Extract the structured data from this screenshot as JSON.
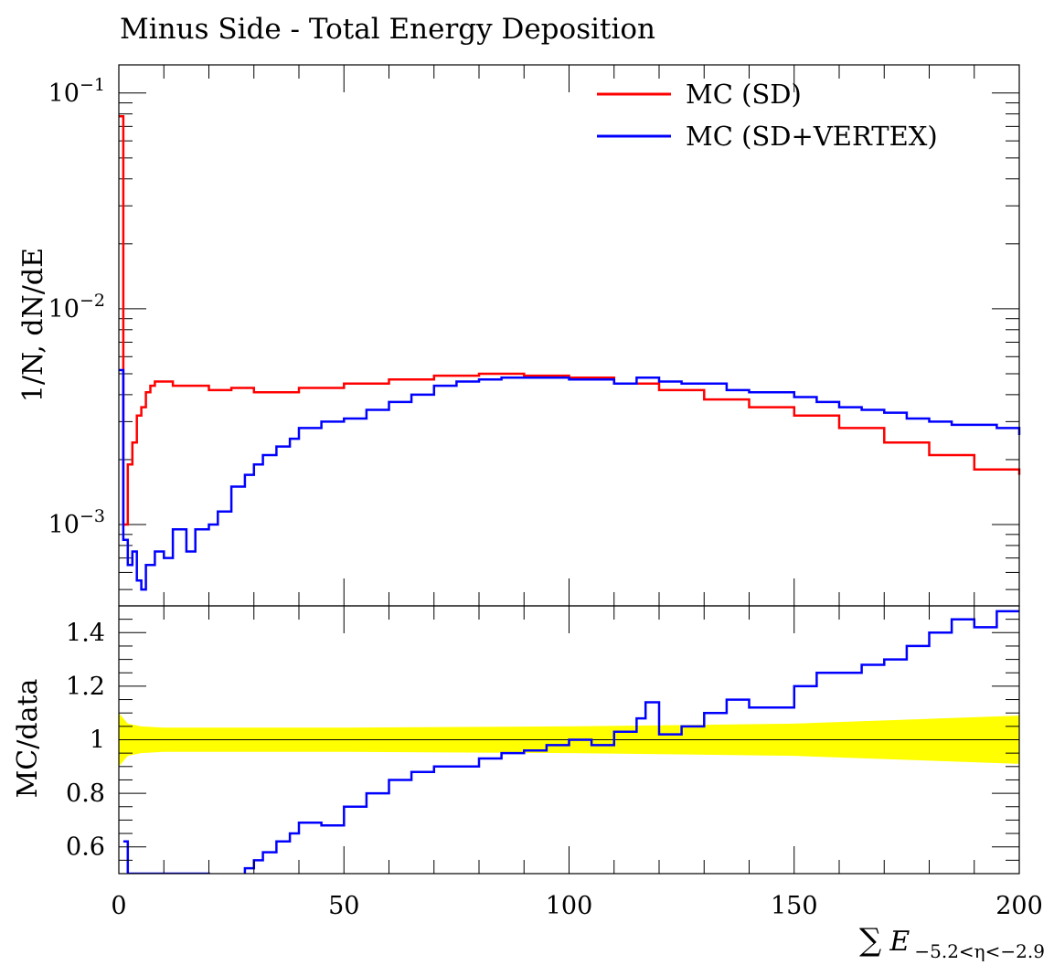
{
  "chart_data": [
    {
      "panel": "main",
      "type": "line",
      "title": "Minus Side - Total Energy Deposition",
      "ylabel": "1/N, dN/dE",
      "xlim": [
        0,
        200
      ],
      "ylim": [
        0.00042,
        0.135
      ],
      "yscale": "log",
      "yticks": [
        {
          "value": 0.1,
          "base": "10",
          "exp": "−1"
        },
        {
          "value": 0.01,
          "base": "10",
          "exp": "−2"
        },
        {
          "value": 0.001,
          "base": "10",
          "exp": "−3"
        }
      ],
      "legend_position": "top-right",
      "series": [
        {
          "name": "MC (SD)",
          "color": "#ff0000",
          "x": [
            0,
            1,
            2,
            3,
            4,
            5,
            6,
            7,
            8,
            10,
            12,
            15,
            20,
            25,
            30,
            40,
            50,
            60,
            70,
            80,
            85,
            90,
            100,
            110,
            120,
            130,
            140,
            150,
            160,
            170,
            180,
            190,
            200
          ],
          "y": [
            0.078,
            0.001,
            0.0019,
            0.0024,
            0.0032,
            0.0035,
            0.0041,
            0.0044,
            0.0046,
            0.0046,
            0.0044,
            0.0044,
            0.0042,
            0.0043,
            0.0041,
            0.0043,
            0.0045,
            0.0047,
            0.0049,
            0.005,
            0.005,
            0.0049,
            0.0048,
            0.0045,
            0.0042,
            0.0038,
            0.0035,
            0.0032,
            0.0028,
            0.0024,
            0.0021,
            0.0018,
            0.0017
          ]
        },
        {
          "name": "MC (SD+VERTEX)",
          "color": "#0000ff",
          "x": [
            0,
            1,
            2,
            3,
            4,
            5,
            6,
            8,
            10,
            12,
            15,
            17,
            20,
            22,
            25,
            28,
            30,
            32,
            35,
            38,
            40,
            45,
            50,
            55,
            60,
            65,
            70,
            75,
            80,
            85,
            90,
            95,
            100,
            105,
            110,
            115,
            120,
            125,
            130,
            135,
            140,
            145,
            150,
            155,
            160,
            165,
            170,
            175,
            180,
            185,
            190,
            195,
            200
          ],
          "y": [
            0.0052,
            0.00085,
            0.00065,
            0.00075,
            0.00055,
            0.0005,
            0.00065,
            0.00075,
            0.0007,
            0.00095,
            0.00075,
            0.00095,
            0.001,
            0.00115,
            0.0015,
            0.0017,
            0.0019,
            0.0021,
            0.0023,
            0.0025,
            0.0028,
            0.003,
            0.0031,
            0.0034,
            0.0037,
            0.004,
            0.0044,
            0.0046,
            0.0047,
            0.0048,
            0.0048,
            0.0048,
            0.0047,
            0.0047,
            0.0045,
            0.0048,
            0.0046,
            0.0045,
            0.0045,
            0.0042,
            0.0041,
            0.0041,
            0.0039,
            0.0037,
            0.0035,
            0.0034,
            0.0033,
            0.0031,
            0.003,
            0.0029,
            0.0029,
            0.0028,
            0.0026
          ]
        }
      ]
    },
    {
      "panel": "ratio",
      "type": "line",
      "ylabel": "MC/data",
      "xlabel_sum": "∑",
      "xlabel_var": "E",
      "xlabel_sub": "−5.2<η<−2.9",
      "xlim": [
        0,
        200
      ],
      "ylim": [
        0.5,
        1.5
      ],
      "xticks": [
        0,
        50,
        100,
        150,
        200
      ],
      "xtick_labels": [
        "0",
        "50",
        "100",
        "150",
        "200"
      ],
      "yticks": [
        0.6,
        0.8,
        1.0,
        1.2,
        1.4
      ],
      "ytick_labels": [
        "0.6",
        "0.8",
        "1",
        "1.2",
        "1.4"
      ],
      "reference_line": 1.0,
      "uncertainty_band": {
        "color": "#ffff00",
        "x": [
          0,
          2,
          5,
          10,
          50,
          100,
          150,
          200
        ],
        "half_width": [
          0.1,
          0.06,
          0.05,
          0.045,
          0.045,
          0.05,
          0.06,
          0.09
        ]
      },
      "series": [
        {
          "name": "MC (SD+VERTEX)",
          "color": "#0000ff",
          "x": [
            1,
            2,
            20,
            25,
            28,
            30,
            32,
            35,
            38,
            40,
            45,
            50,
            55,
            60,
            65,
            70,
            75,
            80,
            85,
            90,
            95,
            100,
            105,
            110,
            115,
            117,
            120,
            125,
            130,
            135,
            140,
            145,
            150,
            155,
            160,
            165,
            170,
            175,
            180,
            185,
            190,
            195,
            200
          ],
          "y": [
            0.62,
            0.5,
            0.45,
            0.48,
            0.52,
            0.55,
            0.58,
            0.62,
            0.65,
            0.69,
            0.68,
            0.75,
            0.8,
            0.85,
            0.88,
            0.9,
            0.9,
            0.93,
            0.95,
            0.96,
            0.98,
            1.0,
            0.98,
            1.03,
            1.08,
            1.14,
            1.02,
            1.05,
            1.1,
            1.15,
            1.12,
            1.12,
            1.2,
            1.25,
            1.25,
            1.28,
            1.3,
            1.35,
            1.4,
            1.45,
            1.42,
            1.48,
            1.48
          ]
        }
      ]
    }
  ],
  "legend": [
    {
      "label": "MC (SD)",
      "color": "#ff0000"
    },
    {
      "label": "MC (SD+VERTEX)",
      "color": "#0000ff"
    }
  ]
}
